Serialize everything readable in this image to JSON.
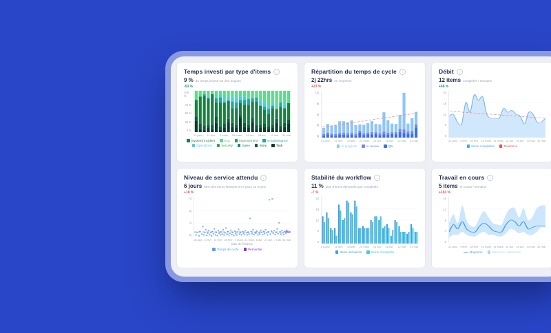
{
  "page": {
    "background": "#2946c8",
    "card_background": "#edeff4"
  },
  "icons": {
    "info": "i"
  },
  "panels": [
    {
      "title": "Temps investi par type d'items",
      "metric": "9 %",
      "metric_sub": "du temps investi sur des bogues",
      "delta": "-53 %",
      "delta_color": "#16a06d",
      "chart": {
        "type": "stacked-bar",
        "ymax": 100,
        "y_ticks": [
          "100 %",
          "75 %",
          "50 %",
          "25 %",
          "0 %"
        ],
        "x_labels": [
          "21 janv.",
          "11 févr.",
          "3 mars",
          "24 mars",
          "14 avr.",
          "28 avr.",
          "12 mai",
          "31 mai"
        ],
        "colors": [
          "#0d3a2a",
          "#15573a",
          "#1e7d42",
          "#22a79b",
          "#4ecbe0",
          "#5fd98a"
        ],
        "bars": [
          [
            28,
            10,
            40,
            0,
            0,
            22
          ],
          [
            8,
            12,
            66,
            0,
            0,
            14
          ],
          [
            6,
            10,
            72,
            4,
            0,
            8
          ],
          [
            10,
            8,
            64,
            0,
            6,
            12
          ],
          [
            8,
            10,
            74,
            0,
            0,
            8
          ],
          [
            22,
            16,
            34,
            10,
            0,
            18
          ],
          [
            6,
            8,
            58,
            12,
            6,
            10
          ],
          [
            10,
            10,
            52,
            0,
            8,
            20
          ],
          [
            24,
            8,
            44,
            0,
            10,
            14
          ],
          [
            12,
            10,
            36,
            16,
            10,
            16
          ],
          [
            10,
            8,
            40,
            14,
            12,
            16
          ],
          [
            34,
            6,
            30,
            8,
            8,
            14
          ],
          [
            12,
            10,
            44,
            12,
            8,
            14
          ],
          [
            10,
            8,
            48,
            14,
            0,
            20
          ],
          [
            24,
            10,
            40,
            8,
            0,
            18
          ],
          [
            8,
            10,
            56,
            10,
            0,
            16
          ],
          [
            10,
            8,
            46,
            0,
            12,
            24
          ],
          [
            12,
            8,
            34,
            8,
            8,
            30
          ],
          [
            8,
            6,
            30,
            12,
            6,
            38
          ],
          [
            10,
            8,
            40,
            6,
            8,
            28
          ],
          [
            22,
            10,
            24,
            0,
            0,
            44
          ],
          [
            8,
            8,
            44,
            12,
            0,
            28
          ],
          [
            12,
            10,
            36,
            0,
            10,
            32
          ],
          [
            20,
            10,
            40,
            0,
            0,
            30
          ]
        ],
        "legend": [
          {
            "label": "[system] incident",
            "color": "#1e7d42"
          },
          {
            "label": "Bug",
            "color": "#5fd98a"
          },
          {
            "label": "Improvement",
            "color": "#2e9e58"
          },
          {
            "label": "It maintenance",
            "color": "#22a79b"
          },
          {
            "label": "Operations",
            "color": "#4ecbe0"
          },
          {
            "label": "Security",
            "color": "#35a25f"
          },
          {
            "label": "Spike",
            "color": "#178a7a"
          },
          {
            "label": "Story",
            "color": "#15573a"
          },
          {
            "label": "Task",
            "color": "#0d3a2a"
          }
        ]
      }
    },
    {
      "title": "Répartition du temps de cycle",
      "metric": "2j 22hrs",
      "metric_sub": "en moyenne",
      "delta": "+23 %",
      "delta_color": "#e8504f",
      "chart": {
        "type": "stacked-bar-trend",
        "ymax": 12,
        "y_ticks": [
          "12j",
          "9j",
          "6j",
          "3j",
          "0j"
        ],
        "x_labels": [
          "21 janv.",
          "11 févr.",
          "3 mars",
          "24 mars",
          "14 avr.",
          "28 avr.",
          "12 mai",
          "31 mai"
        ],
        "colors": [
          "#3672e8",
          "#7a86f2",
          "#8ec6f7"
        ],
        "bars": [
          [
            0.5,
            0.4,
            1.6
          ],
          [
            0.8,
            0.5,
            2.2
          ],
          [
            0.6,
            0.4,
            2.0
          ],
          [
            0.5,
            0.4,
            2.3
          ],
          [
            0.7,
            0.5,
            3.0
          ],
          [
            0.7,
            0.5,
            3.0
          ],
          [
            0.6,
            0.5,
            2.8
          ],
          [
            0.7,
            0.6,
            3.1
          ],
          [
            0.5,
            0.5,
            2.2
          ],
          [
            1.3,
            0.5,
            1.6
          ],
          [
            0.6,
            0.5,
            2.2
          ],
          [
            0.8,
            0.5,
            2.4
          ],
          [
            0.8,
            0.6,
            2.8
          ],
          [
            0.9,
            0.5,
            2.1
          ],
          [
            0.6,
            0.5,
            2.3
          ],
          [
            0.8,
            0.7,
            5.0
          ],
          [
            0.7,
            0.6,
            3.2
          ],
          [
            0.9,
            0.5,
            2.2
          ],
          [
            0.8,
            0.6,
            2.1
          ],
          [
            1.4,
            0.8,
            3.6
          ],
          [
            1.2,
            0.9,
            9.4
          ],
          [
            0.9,
            0.6,
            2.1
          ],
          [
            1.0,
            0.7,
            3.3
          ],
          [
            2.6,
            0.8,
            3.2
          ]
        ],
        "trend": {
          "from": 2.7,
          "to": 6.3,
          "color": "#f87171"
        },
        "legend": [
          {
            "label": "In progress",
            "color": "#8ec6f7"
          },
          {
            "label": "In review",
            "color": "#7a86f2"
          },
          {
            "label": "Qa",
            "color": "#3672e8"
          }
        ]
      }
    },
    {
      "title": "Débit",
      "metric": "12 items",
      "metric_sub": "complétés / semaine",
      "delta": "+68 %",
      "delta_color": "#16a06d",
      "chart": {
        "type": "area-trend",
        "ymax": 24,
        "y_ticks": [
          "24",
          "18",
          "12",
          "6",
          "0"
        ],
        "x_labels": [
          "21 janv.",
          "4 févr.",
          "18 févr.",
          "10 mars",
          "31 mars",
          "14 avr.",
          "28 avr.",
          "12 mai",
          "31 mai"
        ],
        "fill": "#c9e4fb",
        "stroke": "#7cb8f0",
        "values": [
          11,
          12,
          8,
          7,
          18,
          13,
          22,
          19,
          21,
          12,
          10,
          10,
          10,
          15,
          13,
          14,
          12,
          11,
          7,
          13,
          12,
          8,
          8,
          10
        ],
        "trend": {
          "from": 13.5,
          "to": 10,
          "color": "#f87171"
        },
        "legend": [
          {
            "label": "Items complétés",
            "color": "#4da3f5"
          },
          {
            "label": "Tendance",
            "color": "#e8504f"
          }
        ]
      }
    },
    {
      "title": "Niveau de service attendu",
      "metric": "6 jours",
      "metric_sub": "85% des items finissent en 6 jours ou moins",
      "delta": "+18 %",
      "delta_color": "#e8504f",
      "chart": {
        "type": "scatter",
        "ymax": 4.6,
        "y_ticks": [
          "4j",
          "2j",
          "1j",
          "0j"
        ],
        "x_labels": [
          "15 janv.",
          "1 févr.",
          "14 févr.",
          "28 févr.",
          "7 mars",
          "21 mars",
          "8 avr.",
          "21 avr.",
          "7 mai",
          "31 mai"
        ],
        "x_title": "Date de livraison",
        "dot_color": "#58abef",
        "points": [
          [
            2,
            0.2
          ],
          [
            3,
            0.5
          ],
          [
            5,
            0.1
          ],
          [
            6,
            0.6
          ],
          [
            8,
            0.3
          ],
          [
            9,
            1.15
          ],
          [
            10,
            0.2
          ],
          [
            11,
            0.5
          ],
          [
            12,
            0.8
          ],
          [
            13,
            0.15
          ],
          [
            14,
            0.4
          ],
          [
            15,
            0.7
          ],
          [
            16,
            0.25
          ],
          [
            17,
            0.5
          ],
          [
            18,
            0.1
          ],
          [
            19,
            0.6
          ],
          [
            20,
            0.35
          ],
          [
            21,
            0.9
          ],
          [
            22,
            0.2
          ],
          [
            23,
            0.5
          ],
          [
            24,
            0.15
          ],
          [
            25,
            0.7
          ],
          [
            26,
            0.4
          ],
          [
            27,
            0.2
          ],
          [
            28,
            0.55
          ],
          [
            29,
            0.3
          ],
          [
            30,
            0.8
          ],
          [
            31,
            0.2
          ],
          [
            32,
            0.45
          ],
          [
            33,
            1.0
          ],
          [
            34,
            0.3
          ],
          [
            35,
            0.6
          ],
          [
            36,
            0.2
          ],
          [
            37,
            0.4
          ],
          [
            38,
            0.75
          ],
          [
            39,
            0.25
          ],
          [
            40,
            0.5
          ],
          [
            41,
            0.15
          ],
          [
            42,
            0.65
          ],
          [
            43,
            0.35
          ],
          [
            44,
            0.2
          ],
          [
            45,
            0.55
          ],
          [
            46,
            0.85
          ],
          [
            47,
            0.3
          ],
          [
            48,
            0.5
          ],
          [
            49,
            0.2
          ],
          [
            50,
            0.6
          ],
          [
            51,
            0.4
          ],
          [
            52,
            0.25
          ],
          [
            53,
            0.7
          ],
          [
            54,
            0.45
          ],
          [
            55,
            0.2
          ],
          [
            56,
            0.5
          ],
          [
            57,
            0.3
          ],
          [
            58,
            2.1
          ],
          [
            59,
            0.6
          ],
          [
            60,
            0.35
          ],
          [
            61,
            0.8
          ],
          [
            62,
            0.25
          ],
          [
            63,
            0.5
          ],
          [
            64,
            0.4
          ],
          [
            65,
            0.65
          ],
          [
            66,
            0.2
          ],
          [
            67,
            0.45
          ],
          [
            68,
            0.3
          ],
          [
            69,
            0.75
          ],
          [
            70,
            0.5
          ],
          [
            71,
            0.25
          ],
          [
            72,
            0.6
          ],
          [
            73,
            0.35
          ],
          [
            74,
            0.8
          ],
          [
            75,
            0.45
          ],
          [
            76,
            0.2
          ],
          [
            77,
            0.55
          ],
          [
            78,
            4.25
          ],
          [
            79,
            0.3
          ],
          [
            80,
            0.65
          ],
          [
            81,
            4.35
          ],
          [
            82,
            0.4
          ],
          [
            83,
            0.7
          ],
          [
            84,
            0.25
          ],
          [
            85,
            0.5
          ],
          [
            86,
            0.9
          ],
          [
            87,
            0.35
          ],
          [
            88,
            1.6
          ],
          [
            89,
            0.55
          ],
          [
            90,
            0.3
          ],
          [
            91,
            0.7
          ],
          [
            92,
            0.45
          ],
          [
            93,
            0.25
          ],
          [
            94,
            0.6
          ],
          [
            95,
            0.4
          ],
          [
            96,
            0.75
          ]
        ],
        "percentile": {
          "y": 0.55,
          "label": "85e",
          "color": "#8b2fd6"
        },
        "legend": [
          {
            "label": "Temps de cycle",
            "color": "#4da3f5"
          },
          {
            "label": "Percentile",
            "color": "#8b2fd6"
          }
        ]
      }
    },
    {
      "title": "Stabilité du workflow",
      "metric": "11 %",
      "metric_sub": "plus d'items démarrés que complétés",
      "delta": "-7 %",
      "delta_color": "#e8504f",
      "chart": {
        "type": "paired-bar",
        "ymax": 24,
        "y_ticks": [
          "24",
          "18",
          "12",
          "6",
          "0"
        ],
        "x_labels": [
          "21 janv.",
          "11 févr.",
          "3 mars",
          "24 mars",
          "14 avr.",
          "28 avr.",
          "12 mai",
          "31 mai"
        ],
        "colors": [
          "#3b9fe6",
          "#3ecbd9"
        ],
        "pairs": [
          [
            14,
            11
          ],
          [
            16,
            13
          ],
          [
            8,
            7
          ],
          [
            8,
            4
          ],
          [
            20,
            17
          ],
          [
            12,
            13
          ],
          [
            22,
            21
          ],
          [
            16,
            15
          ],
          [
            22,
            19
          ],
          [
            8,
            8
          ],
          [
            9,
            8
          ],
          [
            8,
            8
          ],
          [
            12,
            11
          ],
          [
            14,
            14
          ],
          [
            12,
            14
          ],
          [
            8,
            9
          ],
          [
            10,
            8
          ],
          [
            4,
            7
          ],
          [
            12,
            11
          ],
          [
            9,
            6
          ],
          [
            6,
            6
          ],
          [
            5,
            6
          ],
          [
            10,
            8
          ],
          [
            6,
            6
          ]
        ],
        "legend": [
          {
            "label": "Items démarrés",
            "color": "#3b9fe6"
          },
          {
            "label": "Items complétés",
            "color": "#3ecbd9"
          }
        ]
      }
    },
    {
      "title": "Travail en cours",
      "metric": "5 items",
      "metric_sub": "en cours / semaine",
      "delta": "+183 %",
      "delta_color": "#e8504f",
      "chart": {
        "type": "band-line",
        "ymax": 16,
        "y_ticks": [
          "16",
          "12",
          "8",
          "4",
          "0"
        ],
        "x_labels": [
          "21 janv.",
          "4 févr.",
          "18 févr.",
          "10 mars",
          "31 mars",
          "14 avr.",
          "28 avr.",
          "12 mai",
          "31 mai"
        ],
        "band_fill": "#c3e2fa",
        "line_color": "#4a9fe8",
        "mean": [
          4,
          6.5,
          5,
          7.5,
          5,
          4,
          4,
          6,
          7,
          6,
          4.5,
          4,
          4,
          6.5,
          8,
          7.5,
          6,
          7.5,
          5,
          5.5,
          6,
          6,
          6
        ],
        "min": [
          2,
          3,
          3,
          4,
          3,
          2.5,
          2.5,
          3.5,
          4,
          3,
          3,
          2.5,
          2.5,
          3.5,
          5,
          4.5,
          3.5,
          4,
          3,
          3,
          4,
          5.5,
          5.5
        ],
        "max": [
          7,
          10,
          7,
          13,
          8,
          6,
          6,
          9,
          11,
          9,
          7,
          6.5,
          6.5,
          10,
          12,
          12,
          9,
          12,
          8,
          9,
          12,
          13,
          13
        ],
        "legend": [
          {
            "label": "Moyenne",
            "color": "#4a9fe8",
            "line": true
          },
          {
            "label": "Minimum / Maximum",
            "color": "#a8d8f8"
          }
        ]
      }
    }
  ]
}
